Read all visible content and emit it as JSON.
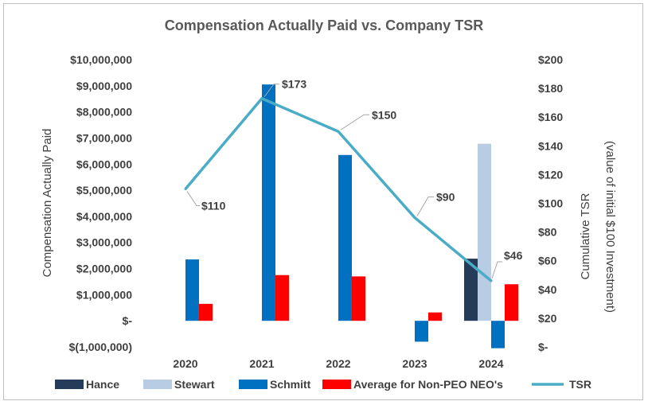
{
  "chart_data": {
    "type": "bar",
    "title": "Compensation Actually Paid vs. Company TSR",
    "ylabel": "Compensation Actually Paid",
    "y2label_line1": "Cumulative TSR",
    "y2label_line2": "(value of initial $100 Investment)",
    "categories": [
      "2020",
      "2021",
      "2022",
      "2023",
      "2024"
    ],
    "ylim": [
      -1000000,
      10000000
    ],
    "y2lim": [
      0,
      200
    ],
    "y_ticks": [
      "$10,000,000",
      "$9,000,000",
      "$8,000,000",
      "$7,000,000",
      "$6,000,000",
      "$5,000,000",
      "$4,000,000",
      "$3,000,000",
      "$2,000,000",
      "$1,000,000",
      "$-",
      "$(1,000,000)"
    ],
    "y2_ticks": [
      "$200",
      "$180",
      "$160",
      "$140",
      "$120",
      "$100",
      "$80",
      "$60",
      "$40",
      "$20",
      "$-"
    ],
    "series": [
      {
        "name": "Hance",
        "color": "#243b5a",
        "values": [
          null,
          null,
          null,
          null,
          2380000
        ]
      },
      {
        "name": "Stewart",
        "color": "#b8cce4",
        "values": [
          null,
          null,
          null,
          null,
          6780000
        ]
      },
      {
        "name": "Schmitt",
        "color": "#0070c0",
        "values": [
          2350000,
          9050000,
          6350000,
          -800000,
          -1050000
        ]
      },
      {
        "name": "Average for Non-PEO NEO's",
        "color": "#ff0000",
        "values": [
          650000,
          1750000,
          1700000,
          320000,
          1400000
        ]
      }
    ],
    "line_series": {
      "name": "TSR",
      "color": "#4bacc6",
      "axis": "secondary",
      "values": [
        110,
        173,
        150,
        90,
        46
      ],
      "labels": [
        "$110",
        "$173",
        "$150",
        "$90",
        "$46"
      ]
    },
    "legend_position": "bottom",
    "grid": false
  }
}
